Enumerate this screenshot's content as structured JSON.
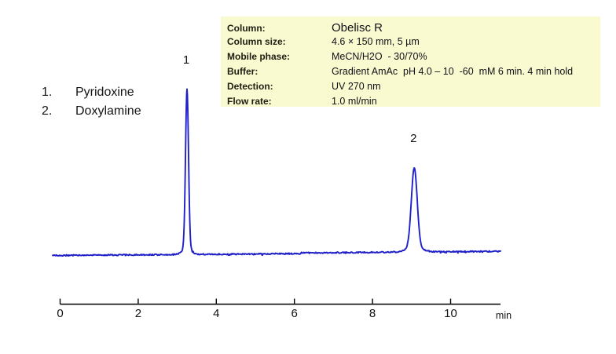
{
  "figure": {
    "background": "#ffffff"
  },
  "peak_list": {
    "items": [
      {
        "number": "1.",
        "name": "Pyridoxine"
      },
      {
        "number": "2.",
        "name": "Doxylamine"
      }
    ]
  },
  "info_box": {
    "background": "#fafad0",
    "rows": [
      {
        "label": "Column:",
        "value": "Obelisc R"
      },
      {
        "label": "Column size:",
        "value": "4.6 × 150 mm, 5 µm"
      },
      {
        "label": "Mobile phase:",
        "value": "MeCN/H2O  - 30/70%"
      },
      {
        "label": "Buffer:",
        "value": "Gradient AmAc  pH 4.0 – 10  -60  mM 6 min. 4 min hold"
      },
      {
        "label": "Detection:",
        "value": "UV 270 nm"
      },
      {
        "label": "Flow rate:",
        "value": "1.0 ml/min"
      }
    ]
  },
  "chart_data": {
    "type": "line",
    "title": "",
    "xlabel": "min",
    "ylabel": "",
    "x_ticks": [
      0,
      2,
      4,
      6,
      8,
      10
    ],
    "x_range": [
      0,
      11.3
    ],
    "axis_unit_label": "min",
    "grid": false,
    "legend_position": "none",
    "trace_color": "#2020c8",
    "axis_color": "#000000",
    "baseline": "flat with minor noise and slight downward drift",
    "peaks": [
      {
        "label": "1",
        "name": "Pyridoxine",
        "retention_time_min": 3.25,
        "relative_height": 1.0,
        "sigma_min": 0.038
      },
      {
        "label": "2",
        "name": "Doxylamine",
        "retention_time_min": 9.07,
        "relative_height": 0.51,
        "sigma_min": 0.075
      }
    ]
  }
}
